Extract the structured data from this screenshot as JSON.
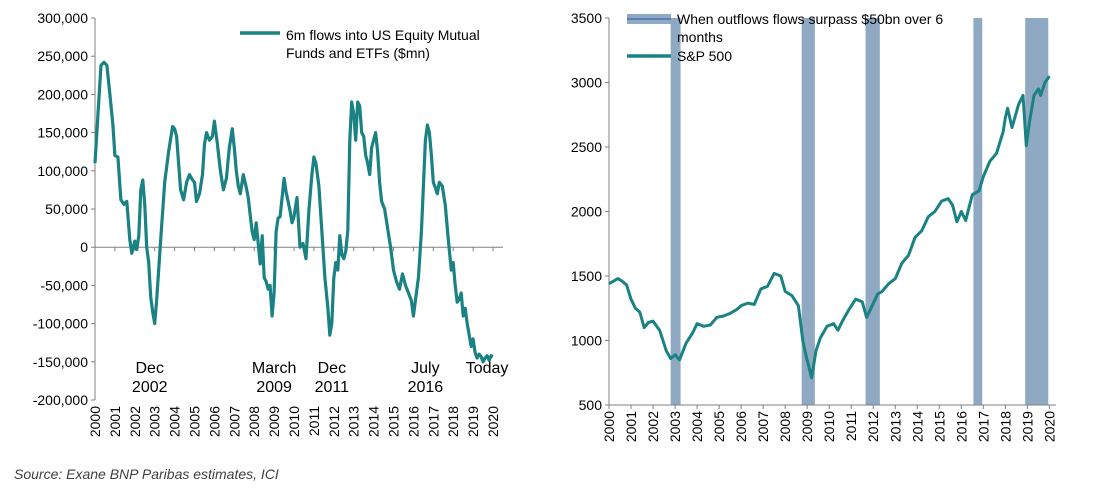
{
  "source_note": "Source: Exane BNP Paribas estimates, ICI",
  "colors": {
    "line": "#1a8282",
    "band": "#8fa9c3",
    "axis": "#808080",
    "text": "#000000"
  },
  "chart_data": [
    {
      "type": "line",
      "title": "",
      "xlabel": "",
      "ylabel": "",
      "xlim": [
        2000,
        2020.5
      ],
      "ylim": [
        -200000,
        300000
      ],
      "ytick_values": [
        300000,
        250000,
        200000,
        150000,
        100000,
        50000,
        0,
        -50000,
        -100000,
        -150000,
        -200000
      ],
      "ytick_labels": [
        "300,000",
        "250,000",
        "200,000",
        "150,000",
        "100,000",
        "50,000",
        "0",
        "-50,000",
        "-100,000",
        "-150,000",
        "-200,000"
      ],
      "xtick_labels": [
        "2000",
        "2001",
        "2002",
        "2003",
        "2004",
        "2005",
        "2006",
        "2007",
        "2008",
        "2009",
        "2010",
        "2011",
        "2012",
        "2013",
        "2014",
        "2015",
        "2016",
        "2017",
        "2018",
        "2019",
        "2020"
      ],
      "legend": "top-right",
      "series": [
        {
          "name": "6m flows into US  Equity Mutual Funds and ETFs ($mn)",
          "x": [
            2000.0,
            2000.15,
            2000.3,
            2000.45,
            2000.6,
            2000.75,
            2000.9,
            2001.0,
            2001.15,
            2001.3,
            2001.45,
            2001.6,
            2001.75,
            2001.85,
            2002.0,
            2002.1,
            2002.2,
            2002.3,
            2002.4,
            2002.5,
            2002.6,
            2002.7,
            2002.8,
            2002.9,
            2003.0,
            2003.1,
            2003.3,
            2003.5,
            2003.7,
            2003.9,
            2004.0,
            2004.1,
            2004.2,
            2004.3,
            2004.45,
            2004.6,
            2004.75,
            2004.9,
            2005.0,
            2005.1,
            2005.25,
            2005.4,
            2005.5,
            2005.6,
            2005.75,
            2005.9,
            2006.0,
            2006.15,
            2006.3,
            2006.45,
            2006.6,
            2006.75,
            2006.9,
            2007.0,
            2007.1,
            2007.2,
            2007.3,
            2007.45,
            2007.6,
            2007.7,
            2007.8,
            2007.9,
            2008.0,
            2008.1,
            2008.2,
            2008.3,
            2008.4,
            2008.5,
            2008.6,
            2008.7,
            2008.8,
            2008.9,
            2009.0,
            2009.1,
            2009.2,
            2009.3,
            2009.4,
            2009.5,
            2009.6,
            2009.7,
            2009.8,
            2009.9,
            2010.0,
            2010.15,
            2010.3,
            2010.45,
            2010.6,
            2010.75,
            2010.9,
            2011.0,
            2011.1,
            2011.25,
            2011.4,
            2011.55,
            2011.7,
            2011.8,
            2011.9,
            2012.0,
            2012.1,
            2012.2,
            2012.3,
            2012.4,
            2012.5,
            2012.6,
            2012.7,
            2012.8,
            2012.9,
            2013.0,
            2013.1,
            2013.2,
            2013.3,
            2013.4,
            2013.5,
            2013.6,
            2013.7,
            2013.8,
            2013.9,
            2014.0,
            2014.1,
            2014.2,
            2014.3,
            2014.4,
            2014.55,
            2014.7,
            2014.85,
            2015.0,
            2015.15,
            2015.3,
            2015.45,
            2015.6,
            2015.75,
            2015.9,
            2016.0,
            2016.1,
            2016.25,
            2016.4,
            2016.5,
            2016.6,
            2016.7,
            2016.8,
            2016.9,
            2017.0,
            2017.1,
            2017.2,
            2017.3,
            2017.45,
            2017.6,
            2017.75,
            2017.9,
            2018.0,
            2018.1,
            2018.2,
            2018.3,
            2018.4,
            2018.5,
            2018.6,
            2018.7,
            2018.8,
            2018.9,
            2019.0,
            2019.1,
            2019.2,
            2019.3,
            2019.4,
            2019.5,
            2019.6,
            2019.7,
            2019.8,
            2019.9,
            2020.0
          ],
          "values": [
            110000,
            175000,
            238000,
            242000,
            238000,
            200000,
            160000,
            120000,
            118000,
            62000,
            56000,
            60000,
            10000,
            -8000,
            8000,
            -3000,
            15000,
            75000,
            88000,
            55000,
            0,
            -20000,
            -65000,
            -85000,
            -100000,
            -68000,
            10000,
            85000,
            125000,
            158000,
            155000,
            145000,
            110000,
            75000,
            62000,
            85000,
            95000,
            88000,
            85000,
            60000,
            70000,
            95000,
            135000,
            150000,
            140000,
            145000,
            165000,
            135000,
            100000,
            75000,
            90000,
            130000,
            155000,
            130000,
            100000,
            80000,
            70000,
            95000,
            78000,
            65000,
            42000,
            20000,
            10000,
            32000,
            5000,
            -22000,
            15000,
            -40000,
            -45000,
            -55000,
            -50000,
            -90000,
            -60000,
            20000,
            38000,
            40000,
            65000,
            90000,
            72000,
            60000,
            48000,
            32000,
            40000,
            65000,
            0,
            5000,
            -15000,
            50000,
            95000,
            118000,
            110000,
            80000,
            20000,
            -40000,
            -80000,
            -115000,
            -100000,
            -40000,
            -20000,
            -30000,
            15000,
            -10000,
            -15000,
            -5000,
            22000,
            140000,
            190000,
            175000,
            140000,
            190000,
            185000,
            150000,
            145000,
            120000,
            110000,
            95000,
            130000,
            140000,
            150000,
            125000,
            85000,
            60000,
            50000,
            25000,
            0,
            -30000,
            -45000,
            -55000,
            -35000,
            -50000,
            -60000,
            -70000,
            -90000,
            -70000,
            -40000,
            20000,
            80000,
            140000,
            160000,
            150000,
            120000,
            85000,
            78000,
            70000,
            85000,
            80000,
            55000,
            10000,
            -30000,
            -20000,
            -50000,
            -72000,
            -68000,
            -60000,
            -90000,
            -80000,
            -100000,
            -115000,
            -130000,
            -120000,
            -138000,
            -145000,
            -140000,
            -143000,
            -150000,
            -145000,
            -142000,
            -148000,
            -142000,
            -143000
          ]
        }
      ],
      "annotations": [
        {
          "x": 2002.75,
          "lines": [
            "Dec",
            "2002"
          ]
        },
        {
          "x": 2009.0,
          "lines": [
            "March",
            "2009"
          ]
        },
        {
          "x": 2011.9,
          "lines": [
            "Dec",
            "2011"
          ]
        },
        {
          "x": 2016.6,
          "lines": [
            "July",
            "2016"
          ]
        },
        {
          "x": 2019.7,
          "lines": [
            "Today"
          ]
        }
      ]
    },
    {
      "type": "line",
      "title": "",
      "xlabel": "",
      "ylabel": "",
      "xlim": [
        2000,
        2020.3
      ],
      "ylim": [
        500,
        3500
      ],
      "ytick_values": [
        3500,
        3000,
        2500,
        2000,
        1500,
        1000,
        500
      ],
      "ytick_labels": [
        "3500",
        "3000",
        "2500",
        "2000",
        "1500",
        "1000",
        "500"
      ],
      "xtick_labels": [
        "2000",
        "2001",
        "2002",
        "2003",
        "2004",
        "2005",
        "2006",
        "2007",
        "2008",
        "2009",
        "2010",
        "2011",
        "2012",
        "2013",
        "2014",
        "2015",
        "2016",
        "2017",
        "2018",
        "2019",
        "2020"
      ],
      "legend": "top-left",
      "bands": [
        {
          "start": 2002.8,
          "end": 2003.25
        },
        {
          "start": 2008.75,
          "end": 2009.35
        },
        {
          "start": 2011.65,
          "end": 2012.3
        },
        {
          "start": 2016.55,
          "end": 2016.95
        },
        {
          "start": 2018.9,
          "end": 2019.95
        }
      ],
      "series": [
        {
          "name": "When outflows flows surpass $50bn over 6 months",
          "kind": "band"
        },
        {
          "name": "S&P 500",
          "kind": "line",
          "x": [
            2000.0,
            2000.2,
            2000.4,
            2000.6,
            2000.8,
            2001.0,
            2001.2,
            2001.4,
            2001.6,
            2001.8,
            2002.0,
            2002.3,
            2002.6,
            2002.8,
            2003.0,
            2003.2,
            2003.5,
            2003.8,
            2004.0,
            2004.3,
            2004.6,
            2004.9,
            2005.2,
            2005.5,
            2005.8,
            2006.0,
            2006.3,
            2006.6,
            2006.9,
            2007.2,
            2007.5,
            2007.8,
            2008.0,
            2008.3,
            2008.6,
            2008.8,
            2008.95,
            2009.1,
            2009.2,
            2009.4,
            2009.6,
            2009.9,
            2010.2,
            2010.4,
            2010.6,
            2010.9,
            2011.2,
            2011.5,
            2011.7,
            2011.9,
            2012.2,
            2012.4,
            2012.7,
            2013.0,
            2013.3,
            2013.6,
            2013.9,
            2014.2,
            2014.5,
            2014.8,
            2015.1,
            2015.4,
            2015.6,
            2015.8,
            2016.0,
            2016.2,
            2016.5,
            2016.8,
            2017.0,
            2017.3,
            2017.6,
            2017.9,
            2018.0,
            2018.1,
            2018.3,
            2018.6,
            2018.8,
            2018.95,
            2019.1,
            2019.3,
            2019.5,
            2019.6,
            2019.8,
            2020.0
          ],
          "values": [
            1440,
            1460,
            1480,
            1460,
            1430,
            1320,
            1250,
            1220,
            1100,
            1140,
            1150,
            1080,
            920,
            860,
            890,
            850,
            980,
            1060,
            1130,
            1110,
            1120,
            1180,
            1190,
            1210,
            1240,
            1270,
            1290,
            1280,
            1400,
            1420,
            1520,
            1500,
            1380,
            1350,
            1270,
            1000,
            880,
            780,
            710,
            920,
            1020,
            1110,
            1130,
            1080,
            1150,
            1240,
            1320,
            1300,
            1180,
            1250,
            1360,
            1380,
            1440,
            1480,
            1600,
            1660,
            1800,
            1850,
            1960,
            2000,
            2080,
            2100,
            2050,
            1920,
            2000,
            1930,
            2130,
            2160,
            2270,
            2390,
            2450,
            2620,
            2730,
            2800,
            2650,
            2830,
            2900,
            2510,
            2700,
            2900,
            2950,
            2900,
            3000,
            3050
          ]
        }
      ]
    }
  ]
}
